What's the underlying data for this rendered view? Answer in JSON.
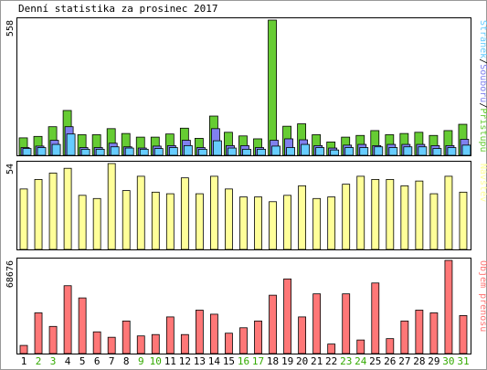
{
  "page": {
    "title": "Denní statistika za prosinec 2017"
  },
  "colors": {
    "hits": "#66cc33",
    "files": "#8080ee",
    "pages": "#66ccff",
    "visits": "#ffff99",
    "volume": "#ff7777",
    "weekend_label": "#33aa00",
    "weekday_label": "#000000",
    "frame": "#000000",
    "background": "#ffffff"
  },
  "chart_data": [
    {
      "type": "bar",
      "panel": "top",
      "ymax_label": "558",
      "ylim": [
        0,
        558
      ],
      "legend": {
        "parts": [
          {
            "text": "Stránek",
            "color": "#66ccff"
          },
          {
            "text": "/",
            "color": "#000000"
          },
          {
            "text": "Souborů",
            "color": "#8080ee"
          },
          {
            "text": "/",
            "color": "#000000"
          },
          {
            "text": "Přístupů",
            "color": "#66cc33"
          }
        ],
        "placement": "right-vertical"
      },
      "categories": [
        "1",
        "2",
        "3",
        "4",
        "5",
        "6",
        "7",
        "8",
        "9",
        "10",
        "11",
        "12",
        "13",
        "14",
        "15",
        "16",
        "17",
        "18",
        "19",
        "20",
        "21",
        "22",
        "23",
        "24",
        "25",
        "26",
        "27",
        "28",
        "29",
        "30",
        "31"
      ],
      "series": [
        {
          "name": "Přístupů",
          "color": "#66cc33",
          "values": [
            72,
            78,
            118,
            185,
            85,
            85,
            110,
            90,
            75,
            75,
            88,
            112,
            70,
            162,
            95,
            80,
            68,
            558,
            120,
            130,
            85,
            55,
            75,
            82,
            102,
            85,
            90,
            95,
            82,
            102,
            128
          ]
        },
        {
          "name": "Souborů",
          "color": "#8080ee",
          "values": [
            32,
            38,
            62,
            118,
            32,
            32,
            50,
            35,
            30,
            38,
            40,
            62,
            32,
            110,
            40,
            40,
            32,
            62,
            68,
            64,
            40,
            30,
            42,
            45,
            40,
            45,
            45,
            45,
            40,
            40,
            66
          ]
        },
        {
          "name": "Stránek",
          "color": "#66ccff",
          "values": [
            28,
            32,
            45,
            88,
            25,
            25,
            35,
            30,
            25,
            28,
            32,
            40,
            25,
            60,
            30,
            25,
            25,
            38,
            32,
            45,
            32,
            22,
            32,
            32,
            35,
            32,
            35,
            35,
            28,
            32,
            42
          ]
        }
      ]
    },
    {
      "type": "bar",
      "panel": "middle",
      "ymax_label": "54",
      "ylim": [
        0,
        54
      ],
      "legend": {
        "parts": [
          {
            "text": "Návštěv",
            "color": "#ffff99"
          }
        ],
        "placement": "right-vertical"
      },
      "categories": [
        "1",
        "2",
        "3",
        "4",
        "5",
        "6",
        "7",
        "8",
        "9",
        "10",
        "11",
        "12",
        "13",
        "14",
        "15",
        "16",
        "17",
        "18",
        "19",
        "20",
        "21",
        "22",
        "23",
        "24",
        "25",
        "26",
        "27",
        "28",
        "29",
        "30",
        "31"
      ],
      "series": [
        {
          "name": "Návštěv",
          "color": "#ffff99",
          "values": [
            38,
            44,
            48,
            51,
            34,
            32,
            54,
            37,
            46,
            36,
            35,
            45,
            35,
            46,
            38,
            33,
            33,
            30,
            34,
            40,
            32,
            33,
            41,
            46,
            44,
            44,
            40,
            43,
            35,
            46,
            36
          ]
        }
      ]
    },
    {
      "type": "bar",
      "panel": "bottom",
      "ymax_label": "68676",
      "ylim": [
        0,
        68676
      ],
      "legend": {
        "parts": [
          {
            "text": "Objem přenosu",
            "color": "#ff7777"
          }
        ],
        "placement": "right-vertical"
      },
      "categories": [
        "1",
        "2",
        "3",
        "4",
        "5",
        "6",
        "7",
        "8",
        "9",
        "10",
        "11",
        "12",
        "13",
        "14",
        "15",
        "16",
        "17",
        "18",
        "19",
        "20",
        "21",
        "22",
        "23",
        "24",
        "25",
        "26",
        "27",
        "28",
        "29",
        "30",
        "31"
      ],
      "series": [
        {
          "name": "Objem přenosu",
          "color": "#ff7777",
          "values": [
            6000,
            30000,
            20000,
            50000,
            41000,
            16000,
            12000,
            24000,
            13000,
            14000,
            27000,
            14000,
            32000,
            29000,
            15000,
            19000,
            24000,
            43000,
            55000,
            27000,
            44000,
            7000,
            44000,
            10000,
            52000,
            11000,
            24000,
            32000,
            30000,
            68676,
            28000
          ]
        }
      ]
    }
  ],
  "x_axis": {
    "labels": [
      "1",
      "2",
      "3",
      "4",
      "5",
      "6",
      "7",
      "8",
      "9",
      "10",
      "11",
      "12",
      "13",
      "14",
      "15",
      "16",
      "17",
      "18",
      "19",
      "20",
      "21",
      "22",
      "23",
      "24",
      "25",
      "26",
      "27",
      "28",
      "29",
      "30",
      "31"
    ],
    "weekend": [
      false,
      true,
      true,
      false,
      false,
      false,
      false,
      false,
      true,
      true,
      false,
      false,
      false,
      false,
      false,
      true,
      true,
      false,
      false,
      false,
      false,
      false,
      true,
      true,
      false,
      false,
      false,
      false,
      false,
      true,
      true
    ]
  }
}
